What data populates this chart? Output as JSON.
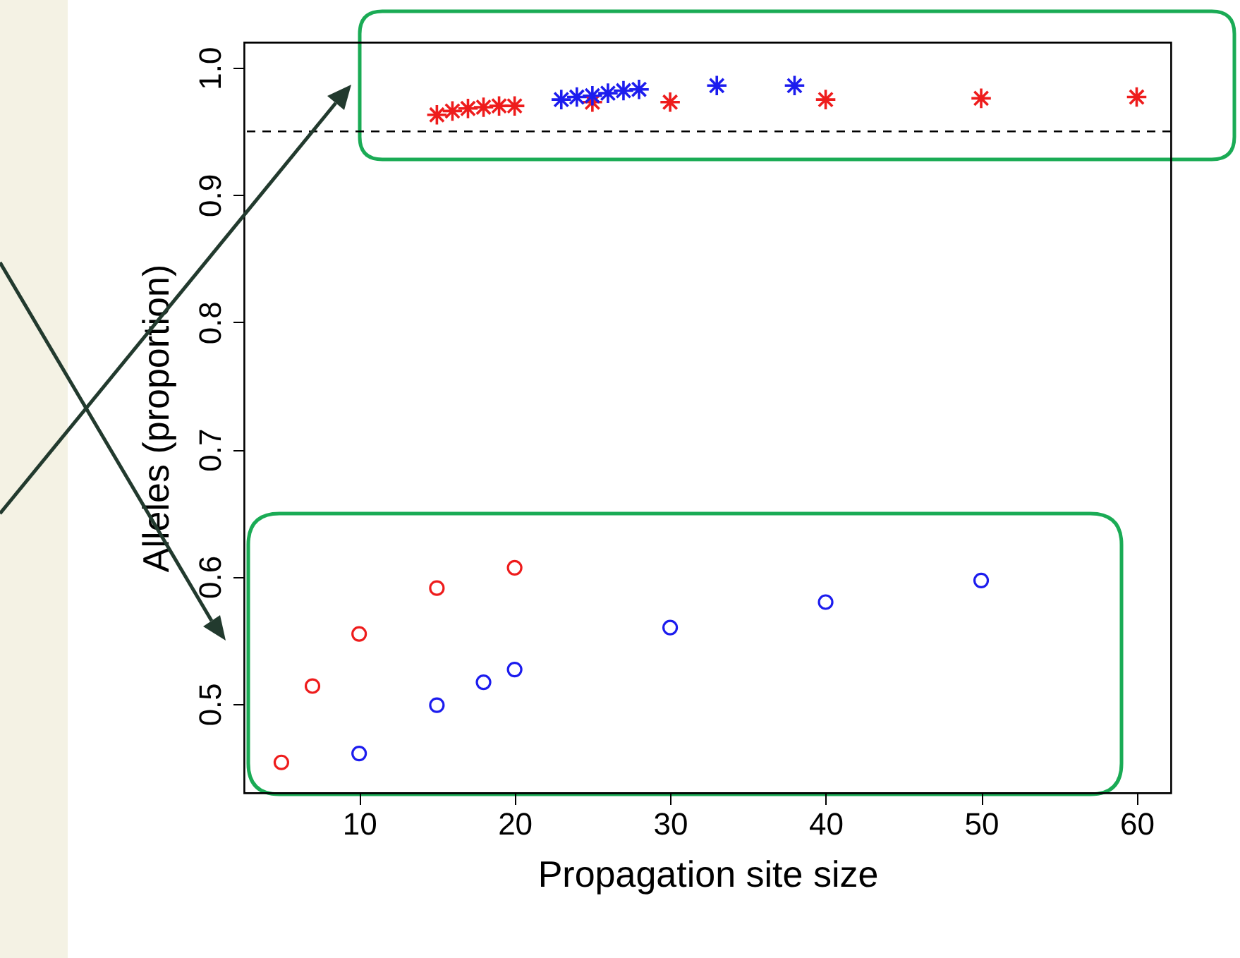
{
  "chart_data": {
    "type": "scatter",
    "xlabel": "Propagation site size",
    "ylabel": "Alleles (proportion)",
    "xlim": [
      2.6,
      62.2
    ],
    "xticks": [
      10,
      20,
      30,
      40,
      50,
      60
    ],
    "ylim": [
      0.43,
      1.02
    ],
    "yticks": [
      0.5,
      0.6,
      0.7,
      0.8,
      0.9,
      {
        "value": 1,
        "label": "1.0"
      }
    ],
    "grid": false,
    "ref_lines": [
      {
        "axis": "y",
        "value": 0.95,
        "label": null,
        "color": "#000000",
        "line_style": "dashed"
      }
    ],
    "series": [
      {
        "color": "#ee1c1c",
        "marker": "cross",
        "x": [
          15,
          16,
          17,
          18,
          19,
          20,
          25,
          30,
          40,
          50,
          60
        ],
        "values": [
          0.963,
          0.966,
          0.968,
          0.969,
          0.97,
          0.97,
          0.973,
          0.973,
          0.975,
          0.976,
          0.977
        ]
      },
      {
        "color": "#1c1cee",
        "marker": "cross",
        "x": [
          23,
          24,
          25,
          26,
          27,
          28,
          33,
          38
        ],
        "values": [
          0.975,
          0.977,
          0.978,
          0.98,
          0.982,
          0.983,
          0.986,
          0.986
        ]
      },
      {
        "color": "#ee1c1c",
        "marker": "circle",
        "x": [
          5,
          7,
          10,
          15,
          20
        ],
        "values": [
          0.454,
          0.514,
          0.555,
          0.591,
          0.607
        ]
      },
      {
        "color": "#1c1cee",
        "marker": "circle",
        "x": [
          10,
          15,
          18,
          20,
          30,
          40,
          50
        ],
        "values": [
          0.461,
          0.499,
          0.517,
          0.527,
          0.56,
          0.58,
          0.597
        ]
      }
    ]
  }
}
